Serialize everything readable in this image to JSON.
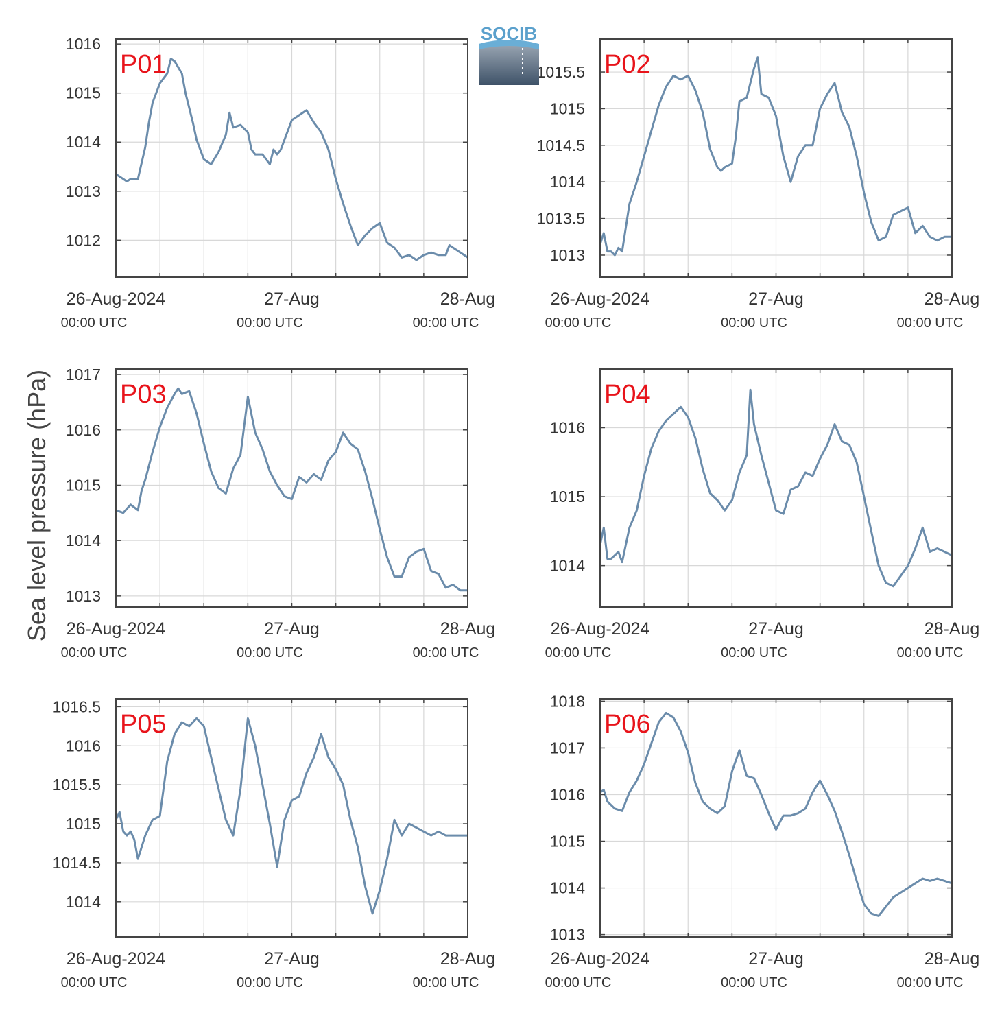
{
  "logo": {
    "text": "SOCIB"
  },
  "ylabel": "Sea level pressure (hPa)",
  "colors": {
    "line": "#6b8cab",
    "panel_label": "#e8141b",
    "grid": "#d8d8d8",
    "axis": "#444444",
    "logo_text": "#5aa0cc"
  },
  "x_ticks": [
    {
      "t": 0,
      "main": "26-Aug-2024",
      "sub": "00:00 UTC"
    },
    {
      "t": 24,
      "main": "27-Aug",
      "sub": "00:00 UTC"
    },
    {
      "t": 48,
      "main": "28-Aug",
      "sub": "00:00 UTC"
    }
  ],
  "chart_data": [
    {
      "type": "line",
      "name": "P01",
      "xlabel": "",
      "ylabel": "Sea level pressure (hPa)",
      "xlim": [
        0,
        48
      ],
      "ylim": [
        1011.25,
        1016.1
      ],
      "yticks": [
        1012,
        1013,
        1014,
        1015,
        1016
      ],
      "ytick_labels": [
        "1012",
        "1013",
        "1014",
        "1015",
        "1016"
      ],
      "x": [
        0,
        1,
        1.5,
        2,
        3,
        4,
        4.5,
        5,
        6,
        7,
        7.5,
        8,
        9,
        9.5,
        10,
        10.5,
        11,
        12,
        13,
        14,
        15,
        15.5,
        16,
        17,
        18,
        18.5,
        19,
        20,
        21,
        21.5,
        22,
        22.5,
        23,
        24,
        25,
        26,
        27,
        28,
        29,
        30,
        31,
        32,
        33,
        34,
        35,
        36,
        37,
        38,
        39,
        40,
        41,
        41.5,
        42,
        43,
        44,
        45,
        45.5,
        46,
        46.5,
        47,
        47.5,
        48
      ],
      "values": [
        1013.35,
        1013.25,
        1013.2,
        1013.25,
        1013.25,
        1013.9,
        1014.4,
        1014.8,
        1015.2,
        1015.4,
        1015.7,
        1015.65,
        1015.4,
        1015.0,
        1014.7,
        1014.4,
        1014.05,
        1013.65,
        1013.55,
        1013.8,
        1014.15,
        1014.6,
        1014.3,
        1014.35,
        1014.2,
        1013.85,
        1013.75,
        1013.75,
        1013.55,
        1013.85,
        1013.75,
        1013.85,
        1014.05,
        1014.45,
        1014.55,
        1014.65,
        1014.4,
        1014.2,
        1013.85,
        1013.25,
        1012.75,
        1012.3,
        1011.9,
        1012.1,
        1012.25,
        1012.35,
        1011.95,
        1011.85,
        1011.65,
        1011.7,
        1011.6,
        1011.65,
        1011.7,
        1011.75,
        1011.7,
        1011.7,
        1011.9,
        1011.85,
        1011.8,
        1011.75,
        1011.7,
        1011.65
      ]
    },
    {
      "type": "line",
      "name": "P02",
      "xlabel": "",
      "ylabel": "",
      "xlim": [
        0,
        48
      ],
      "ylim": [
        1012.7,
        1015.95
      ],
      "yticks": [
        1013,
        1013.5,
        1014,
        1014.5,
        1015,
        1015.5
      ],
      "ytick_labels": [
        "1013",
        "1013.5",
        "1014",
        "1014.5",
        "1015",
        "1015.5"
      ],
      "x": [
        0,
        0.5,
        1,
        1.5,
        2,
        2.5,
        3,
        4,
        5,
        6,
        7,
        8,
        9,
        10,
        11,
        12,
        13,
        14,
        15,
        16,
        16.5,
        17,
        18,
        18.5,
        19,
        20,
        21,
        21.5,
        22,
        23,
        24,
        25,
        26,
        27,
        28,
        29,
        30,
        31,
        32,
        33,
        34,
        35,
        36,
        37,
        38,
        39,
        40,
        41,
        42,
        43,
        44,
        45,
        46,
        47,
        48
      ],
      "values": [
        1013.15,
        1013.3,
        1013.05,
        1013.05,
        1013.0,
        1013.1,
        1013.05,
        1013.7,
        1014.0,
        1014.35,
        1014.7,
        1015.05,
        1015.3,
        1015.45,
        1015.4,
        1015.45,
        1015.25,
        1014.95,
        1014.45,
        1014.2,
        1014.15,
        1014.2,
        1014.25,
        1014.6,
        1015.1,
        1015.15,
        1015.55,
        1015.7,
        1015.2,
        1015.15,
        1014.9,
        1014.35,
        1014.0,
        1014.35,
        1014.5,
        1014.5,
        1015.0,
        1015.2,
        1015.35,
        1014.95,
        1014.75,
        1014.35,
        1013.85,
        1013.45,
        1013.2,
        1013.25,
        1013.55,
        1013.6,
        1013.65,
        1013.3,
        1013.4,
        1013.25,
        1013.2,
        1013.25,
        1013.25
      ]
    },
    {
      "type": "line",
      "name": "P03",
      "xlabel": "",
      "ylabel": "",
      "xlim": [
        0,
        48
      ],
      "ylim": [
        1012.8,
        1017.1
      ],
      "yticks": [
        1013,
        1014,
        1015,
        1016,
        1017
      ],
      "ytick_labels": [
        "1013",
        "1014",
        "1015",
        "1016",
        "1017"
      ],
      "x": [
        0,
        1,
        2,
        2.5,
        3,
        3.5,
        4,
        5,
        6,
        7,
        8,
        8.5,
        9,
        10,
        11,
        12,
        13,
        14,
        15,
        16,
        17,
        18,
        19,
        20,
        21,
        22,
        23,
        24,
        25,
        26,
        27,
        28,
        29,
        30,
        31,
        32,
        33,
        34,
        35,
        36,
        37,
        38,
        39,
        40,
        41,
        42,
        43,
        44,
        45,
        46,
        47,
        48
      ],
      "values": [
        1014.55,
        1014.5,
        1014.65,
        1014.6,
        1014.55,
        1014.9,
        1015.1,
        1015.6,
        1016.05,
        1016.4,
        1016.65,
        1016.75,
        1016.65,
        1016.7,
        1016.3,
        1015.75,
        1015.25,
        1014.95,
        1014.85,
        1015.3,
        1015.55,
        1016.6,
        1015.95,
        1015.65,
        1015.25,
        1015.0,
        1014.8,
        1014.75,
        1015.15,
        1015.05,
        1015.2,
        1015.1,
        1015.45,
        1015.6,
        1015.95,
        1015.75,
        1015.65,
        1015.25,
        1014.75,
        1014.2,
        1013.7,
        1013.35,
        1013.35,
        1013.7,
        1013.8,
        1013.85,
        1013.45,
        1013.4,
        1013.15,
        1013.2,
        1013.1,
        1013.1
      ]
    },
    {
      "type": "line",
      "name": "P04",
      "xlabel": "",
      "ylabel": "",
      "xlim": [
        0,
        48
      ],
      "ylim": [
        1013.4,
        1016.85
      ],
      "yticks": [
        1014,
        1015,
        1016
      ],
      "ytick_labels": [
        "1014",
        "1015",
        "1016"
      ],
      "x": [
        0,
        0.5,
        1,
        1.5,
        2,
        2.5,
        3,
        3.5,
        4,
        5,
        6,
        7,
        8,
        9,
        10,
        11,
        12,
        13,
        14,
        15,
        16,
        17,
        18,
        19,
        20,
        20.5,
        21,
        22,
        23,
        24,
        25,
        26,
        27,
        28,
        29,
        30,
        31,
        32,
        33,
        34,
        35,
        36,
        37,
        38,
        39,
        40,
        41,
        42,
        43,
        44,
        45,
        46,
        47,
        48
      ],
      "values": [
        1014.3,
        1014.55,
        1014.1,
        1014.1,
        1014.15,
        1014.2,
        1014.05,
        1014.3,
        1014.55,
        1014.8,
        1015.3,
        1015.7,
        1015.95,
        1016.1,
        1016.2,
        1016.3,
        1016.15,
        1015.85,
        1015.4,
        1015.05,
        1014.95,
        1014.8,
        1014.95,
        1015.35,
        1015.6,
        1016.55,
        1016.05,
        1015.6,
        1015.2,
        1014.8,
        1014.75,
        1015.1,
        1015.15,
        1015.35,
        1015.3,
        1015.55,
        1015.75,
        1016.05,
        1015.8,
        1015.75,
        1015.5,
        1015.0,
        1014.5,
        1014.0,
        1013.75,
        1013.7,
        1013.85,
        1014.0,
        1014.25,
        1014.55,
        1014.2,
        1014.25,
        1014.2,
        1014.15
      ]
    },
    {
      "type": "line",
      "name": "P05",
      "xlabel": "",
      "ylabel": "",
      "xlim": [
        0,
        48
      ],
      "ylim": [
        1013.55,
        1016.6
      ],
      "yticks": [
        1014,
        1014.5,
        1015,
        1015.5,
        1016,
        1016.5
      ],
      "ytick_labels": [
        "1014",
        "1014.5",
        "1015",
        "1015.5",
        "1016",
        "1016.5"
      ],
      "x": [
        0,
        0.5,
        1,
        1.5,
        2,
        2.5,
        3,
        4,
        5,
        6,
        7,
        8,
        9,
        10,
        11,
        12,
        13,
        14,
        15,
        16,
        17,
        18,
        19,
        20,
        21,
        22,
        23,
        24,
        25,
        26,
        27,
        28,
        29,
        30,
        31,
        32,
        33,
        34,
        35,
        36,
        37,
        38,
        39,
        40,
        41,
        42,
        43,
        44,
        45,
        46,
        47,
        48
      ],
      "values": [
        1015.05,
        1015.15,
        1014.9,
        1014.85,
        1014.9,
        1014.8,
        1014.55,
        1014.85,
        1015.05,
        1015.1,
        1015.8,
        1016.15,
        1016.3,
        1016.25,
        1016.35,
        1016.25,
        1015.85,
        1015.45,
        1015.05,
        1014.85,
        1015.45,
        1016.35,
        1016.0,
        1015.5,
        1015.0,
        1014.45,
        1015.05,
        1015.3,
        1015.35,
        1015.65,
        1015.85,
        1016.15,
        1015.85,
        1015.7,
        1015.5,
        1015.05,
        1014.7,
        1014.2,
        1013.85,
        1014.15,
        1014.55,
        1015.05,
        1014.85,
        1015.0,
        1014.95,
        1014.9,
        1014.85,
        1014.9,
        1014.85,
        1014.85,
        1014.85,
        1014.85
      ]
    },
    {
      "type": "line",
      "name": "P06",
      "xlabel": "",
      "ylabel": "",
      "xlim": [
        0,
        48
      ],
      "ylim": [
        1012.95,
        1018.05
      ],
      "yticks": [
        1013,
        1014,
        1015,
        1016,
        1017,
        1018
      ],
      "ytick_labels": [
        "1013",
        "1014",
        "1015",
        "1016",
        "1017",
        "1018"
      ],
      "x": [
        0,
        0.5,
        1,
        2,
        3,
        4,
        5,
        6,
        7,
        8,
        9,
        10,
        11,
        12,
        13,
        14,
        15,
        16,
        17,
        18,
        19,
        20,
        21,
        22,
        23,
        24,
        25,
        26,
        27,
        28,
        29,
        30,
        31,
        32,
        33,
        34,
        35,
        36,
        37,
        38,
        39,
        40,
        41,
        42,
        43,
        44,
        45,
        46,
        47,
        48
      ],
      "values": [
        1016.05,
        1016.1,
        1015.85,
        1015.7,
        1015.65,
        1016.05,
        1016.3,
        1016.65,
        1017.1,
        1017.55,
        1017.75,
        1017.65,
        1017.35,
        1016.9,
        1016.25,
        1015.85,
        1015.7,
        1015.6,
        1015.75,
        1016.5,
        1016.95,
        1016.4,
        1016.35,
        1016.0,
        1015.6,
        1015.25,
        1015.55,
        1015.55,
        1015.6,
        1015.7,
        1016.05,
        1016.3,
        1016.0,
        1015.65,
        1015.2,
        1014.7,
        1014.15,
        1013.65,
        1013.45,
        1013.4,
        1013.6,
        1013.8,
        1013.9,
        1014.0,
        1014.1,
        1014.2,
        1014.15,
        1014.2,
        1014.15,
        1014.1
      ]
    }
  ]
}
